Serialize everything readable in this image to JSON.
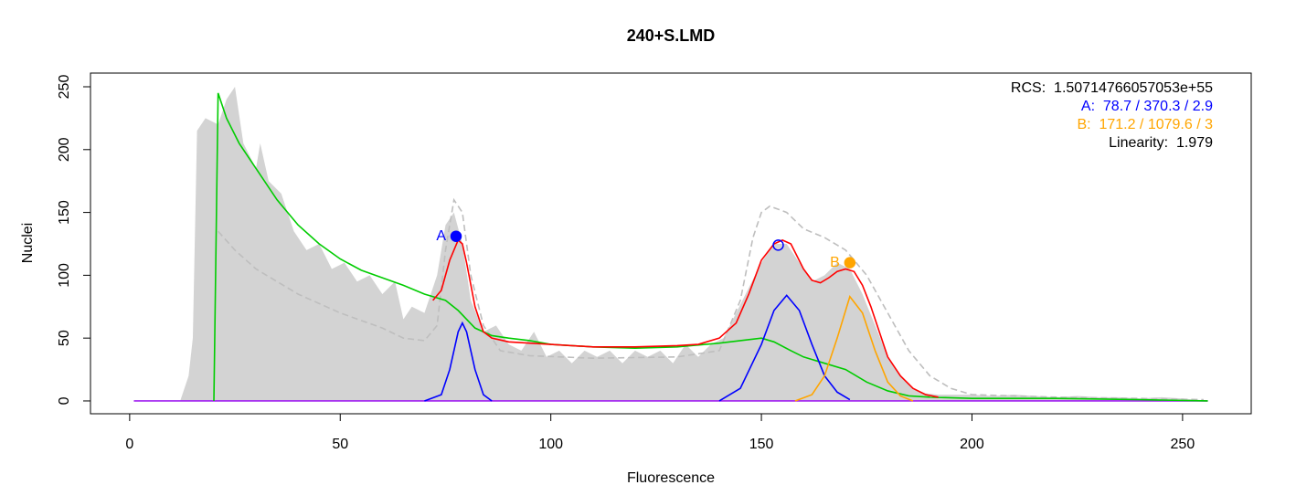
{
  "chart_data": {
    "type": "histogram-fit",
    "title": "240+S.LMD",
    "x_label": "Fluorescence",
    "y_label": "Nuclei",
    "xlim": [
      -9.3,
      266.3
    ],
    "ylim": [
      -10.2,
      260.9
    ],
    "xticks": [
      0,
      50,
      100,
      150,
      200,
      250
    ],
    "yticks": [
      0,
      50,
      100,
      150,
      200,
      250
    ],
    "annotations": [
      {
        "text": "RCS:  1.50714766057053e+55",
        "color": "#000000"
      },
      {
        "text": "A:  78.7 / 370.3 / 2.9",
        "color": "#0000ff"
      },
      {
        "text": "B:  171.2 / 1079.6 / 3",
        "color": "#ffa500"
      },
      {
        "text": "Linearity:  1.979",
        "color": "#000000"
      }
    ],
    "series": [
      {
        "kind": "area",
        "color": "#d3d3d3",
        "x": [
          12,
          14,
          15,
          16,
          18,
          21,
          23,
          25,
          27,
          30,
          31,
          33,
          36,
          39,
          42,
          45,
          48,
          51,
          54,
          57,
          60,
          63,
          65,
          67,
          70,
          73,
          75,
          77,
          79,
          81,
          84,
          87,
          90,
          93,
          96,
          99,
          102,
          105,
          108,
          111,
          114,
          117,
          120,
          123,
          126,
          129,
          132,
          135,
          138,
          141,
          144,
          147,
          150,
          153,
          156,
          159,
          162,
          165,
          168,
          171,
          174,
          177,
          180,
          183,
          186,
          189,
          192,
          195,
          200,
          205,
          210,
          215,
          220,
          225,
          230,
          235,
          240,
          245,
          250,
          256
        ],
        "values": [
          0,
          20,
          50,
          215,
          225,
          220,
          240,
          250,
          205,
          185,
          205,
          175,
          165,
          135,
          120,
          125,
          105,
          110,
          95,
          100,
          85,
          95,
          65,
          75,
          70,
          100,
          140,
          150,
          125,
          80,
          55,
          60,
          45,
          40,
          55,
          35,
          40,
          30,
          40,
          35,
          40,
          30,
          40,
          35,
          40,
          30,
          45,
          35,
          45,
          50,
          70,
          90,
          110,
          125,
          125,
          110,
          95,
          100,
          110,
          105,
          85,
          60,
          35,
          20,
          10,
          6,
          5,
          5,
          5,
          4,
          5,
          4,
          3,
          4,
          3,
          3,
          2,
          3,
          2,
          0
        ]
      },
      {
        "kind": "line",
        "dash": true,
        "color": "#bebebe",
        "x": [
          21,
          25,
          30,
          40,
          50,
          60,
          65,
          70,
          73,
          75,
          77,
          79,
          81,
          84,
          88,
          95,
          110,
          130,
          140,
          145,
          148,
          150,
          152,
          156,
          160,
          165,
          170,
          175,
          180,
          185,
          190,
          195,
          200,
          220,
          240,
          255
        ],
        "values": [
          135,
          120,
          105,
          85,
          70,
          58,
          50,
          48,
          60,
          120,
          160,
          150,
          100,
          60,
          40,
          36,
          34,
          35,
          40,
          80,
          130,
          150,
          155,
          150,
          137,
          130,
          120,
          100,
          70,
          40,
          20,
          10,
          5,
          3,
          2,
          1
        ]
      },
      {
        "kind": "line",
        "color": "#a020f0",
        "x": [
          1,
          256
        ],
        "values": [
          0,
          0
        ]
      },
      {
        "kind": "line",
        "color": "#00cc00",
        "x": [
          20,
          21,
          23,
          26,
          30,
          35,
          40,
          45,
          50,
          55,
          60,
          65,
          70,
          75,
          78,
          82,
          86,
          90,
          95,
          100,
          110,
          120,
          130,
          140,
          145,
          150,
          153,
          157,
          160,
          165,
          170,
          175,
          180,
          185,
          190,
          200,
          220,
          240,
          256
        ],
        "values": [
          0,
          245,
          225,
          205,
          185,
          160,
          140,
          125,
          113,
          104,
          98,
          92,
          85,
          80,
          72,
          58,
          52,
          50,
          48,
          45,
          43,
          42,
          43,
          46,
          48,
          50,
          47,
          40,
          35,
          30,
          25,
          15,
          8,
          4,
          3,
          2,
          2,
          1,
          0
        ]
      },
      {
        "kind": "line",
        "color": "#0000ff",
        "x": [
          70,
          74,
          76,
          78,
          79,
          80,
          82,
          84,
          86
        ],
        "values": [
          0,
          5,
          25,
          55,
          62,
          55,
          25,
          5,
          0
        ]
      },
      {
        "kind": "line",
        "color": "#0000ff",
        "x": [
          140,
          145,
          150,
          153,
          156,
          159,
          162,
          165,
          168,
          171
        ],
        "values": [
          0,
          10,
          45,
          72,
          84,
          72,
          45,
          20,
          7,
          1
        ]
      },
      {
        "kind": "line",
        "color": "#ffa500",
        "x": [
          158,
          162,
          165,
          168,
          171,
          174,
          177,
          180,
          183,
          186
        ],
        "values": [
          0,
          5,
          20,
          50,
          83,
          70,
          40,
          15,
          4,
          0
        ]
      },
      {
        "kind": "line",
        "color": "#ff0000",
        "x": [
          72,
          74,
          76,
          78,
          79,
          80,
          82,
          84,
          86,
          90,
          100,
          110,
          120,
          130,
          135,
          140,
          144,
          147,
          150,
          153,
          155,
          157,
          160,
          162,
          164,
          166,
          168,
          170,
          172,
          174,
          176,
          178,
          180,
          183,
          186,
          189,
          192
        ],
        "values": [
          80,
          88,
          112,
          128,
          125,
          110,
          75,
          55,
          50,
          47,
          45,
          43,
          43,
          44,
          45,
          50,
          62,
          85,
          112,
          125,
          128,
          125,
          105,
          96,
          94,
          98,
          103,
          105,
          103,
          92,
          75,
          55,
          35,
          20,
          10,
          5,
          3
        ]
      },
      {
        "kind": "point",
        "filled": true,
        "name": "A",
        "color": "#0000ff",
        "x": [
          77.5
        ],
        "values": [
          131
        ]
      },
      {
        "kind": "point",
        "filled": false,
        "color": "#0000ff",
        "x": [
          154
        ],
        "values": [
          124
        ]
      },
      {
        "kind": "point",
        "filled": true,
        "name": "B",
        "color": "#ffa500",
        "x": [
          171
        ],
        "values": [
          110
        ]
      }
    ]
  }
}
